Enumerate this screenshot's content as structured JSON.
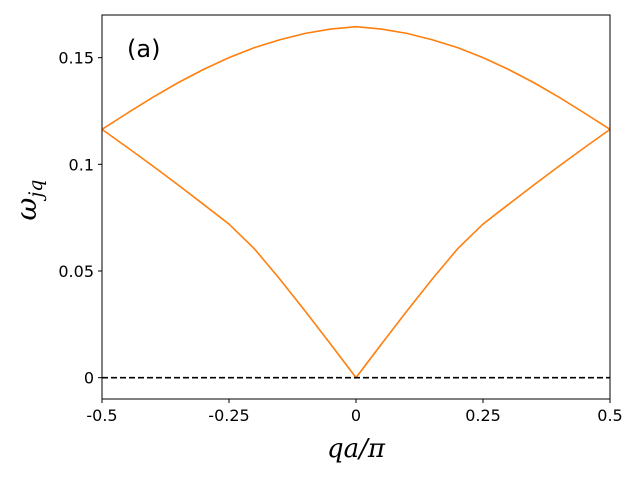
{
  "chart_data": {
    "type": "line",
    "panel_label": "(a)",
    "xlabel": "qa/π",
    "ylabel_main": "ω",
    "ylabel_sub": "jq",
    "xlim": [
      -0.5,
      0.5
    ],
    "ylim": [
      -0.01,
      0.17
    ],
    "x_ticks": [
      {
        "value": -0.5,
        "label": "-0.5"
      },
      {
        "value": -0.25,
        "label": "-0.25"
      },
      {
        "value": 0,
        "label": "0"
      },
      {
        "value": 0.25,
        "label": "0.25"
      },
      {
        "value": 0.5,
        "label": "0.5"
      }
    ],
    "y_ticks": [
      {
        "value": 0,
        "label": "0"
      },
      {
        "value": 0.05,
        "label": "0.05"
      },
      {
        "value": 0.1,
        "label": "0.1"
      },
      {
        "value": 0.15,
        "label": "0.15"
      }
    ],
    "series": [
      {
        "color": "#ff7f0e",
        "style": "solid",
        "x": [
          -0.5,
          -0.45,
          -0.4,
          -0.35,
          -0.3,
          -0.25,
          -0.2,
          -0.15,
          -0.1,
          -0.05,
          0,
          0.05,
          0.1,
          0.15,
          0.2,
          0.25,
          0.3,
          0.35,
          0.4,
          0.45,
          0.5
        ],
        "y": [
          0.1164,
          0.124,
          0.1314,
          0.1383,
          0.1445,
          0.15,
          0.1547,
          0.1584,
          0.1614,
          0.1634,
          0.1645,
          0.1634,
          0.1614,
          0.1584,
          0.1547,
          0.15,
          0.1445,
          0.1383,
          0.1314,
          0.124,
          0.1164
        ]
      },
      {
        "color": "#ff7f0e",
        "style": "solid",
        "x": [
          -0.5,
          -0.45,
          -0.4,
          -0.35,
          -0.3,
          -0.25,
          -0.2,
          -0.15,
          -0.1,
          -0.05,
          0,
          0.05,
          0.1,
          0.15,
          0.2,
          0.25,
          0.3,
          0.35,
          0.4,
          0.45,
          0.5
        ],
        "y": [
          0.1164,
          0.1079,
          0.0992,
          0.0903,
          0.0812,
          0.072,
          0.0604,
          0.0462,
          0.0312,
          0.0157,
          0.0,
          0.0157,
          0.0312,
          0.0462,
          0.0604,
          0.072,
          0.0812,
          0.0903,
          0.0992,
          0.1079,
          0.1164
        ]
      },
      {
        "color": "#000000",
        "style": "dashed",
        "x": [
          -0.5,
          0.5
        ],
        "y": [
          0,
          0
        ]
      }
    ]
  }
}
